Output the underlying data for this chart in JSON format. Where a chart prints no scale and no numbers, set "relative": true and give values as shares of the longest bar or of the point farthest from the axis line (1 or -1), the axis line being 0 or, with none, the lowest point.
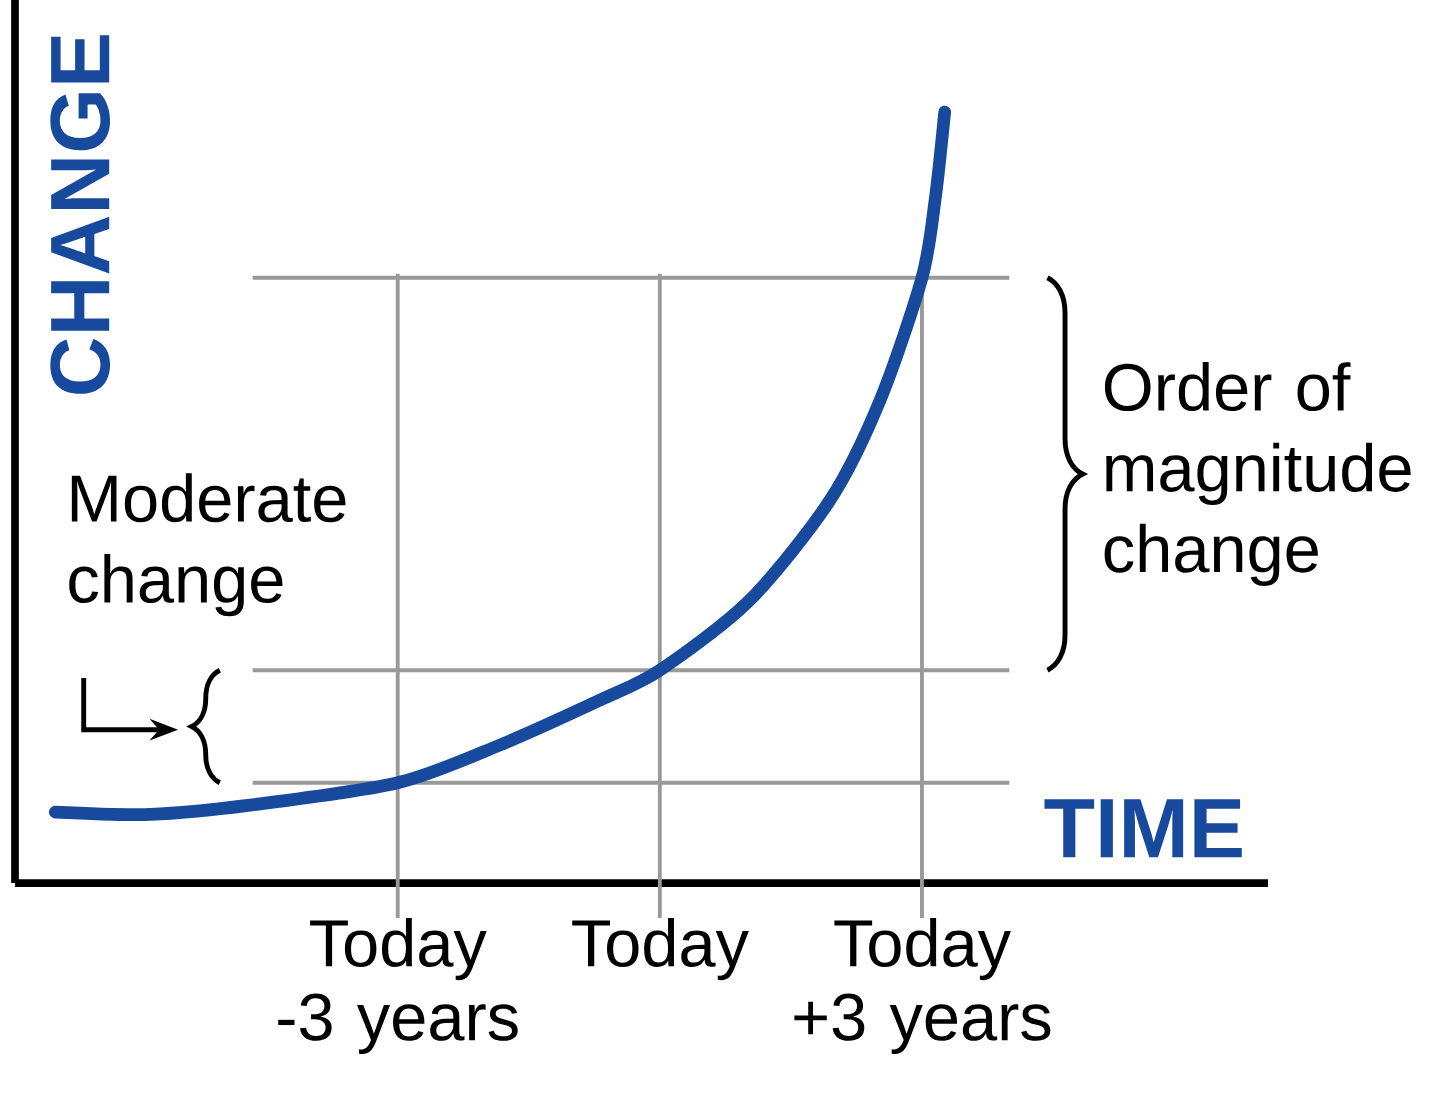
{
  "chart_data": {
    "type": "line",
    "relative": true,
    "xlabel": "TIME",
    "ylabel": "CHANGE",
    "xlim": [
      -7.38,
      6.96
    ],
    "xticks": [
      {
        "value": -3,
        "label": "Today -3 years"
      },
      {
        "value": 0,
        "label": "Today"
      },
      {
        "value": 3,
        "label": "Today +3 years"
      }
    ],
    "series": [
      {
        "color": "#174a9c",
        "x": [
          -6.92,
          -5.83,
          -4.69,
          -3,
          -1.83,
          -0.69,
          0,
          1.03,
          1.95,
          2.52,
          3,
          3.15,
          3.26
        ],
        "values": [
          0.092,
          0.089,
          0.101,
          0.13,
          0.179,
          0.237,
          0.276,
          0.367,
          0.497,
          0.626,
          0.785,
          0.886,
          1.0
        ]
      }
    ],
    "ref_lines": [
      {
        "axis": "x",
        "value": -3,
        "color": "#999999"
      },
      {
        "axis": "x",
        "value": 0,
        "color": "#999999"
      },
      {
        "axis": "x",
        "value": 3,
        "color": "#999999"
      },
      {
        "axis": "y",
        "value": 0.13,
        "color": "#999999"
      },
      {
        "axis": "y",
        "value": 0.276,
        "color": "#999999"
      },
      {
        "axis": "y",
        "value": 0.785,
        "color": "#999999"
      }
    ],
    "annotations": [
      "Moderate change",
      "Order of magnitude change"
    ]
  }
}
